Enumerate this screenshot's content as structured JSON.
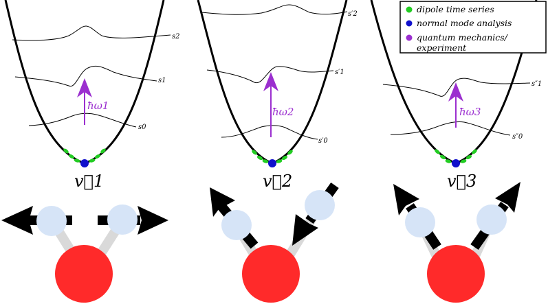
{
  "modes": [
    {
      "vector_label": "v⃗1",
      "transition_label": "ħω1",
      "levels": [
        "s2",
        "s1",
        "s0"
      ]
    },
    {
      "vector_label": "v⃗2",
      "transition_label": "ħω2",
      "levels": [
        "s′2",
        "s′1",
        "s′0"
      ]
    },
    {
      "vector_label": "v⃗3",
      "transition_label": "ħω3",
      "levels": [
        "s″1",
        "s″0"
      ]
    }
  ],
  "legend": {
    "items": [
      {
        "label": "dipole time series",
        "color": "#22cc22"
      },
      {
        "label": "normal mode analysis",
        "color": "#1010cc"
      },
      {
        "label": "quantum mechanics/",
        "label_cont": "experiment",
        "color": "#9b2fcf"
      }
    ]
  },
  "colors": {
    "oxygen": "#ff2a2a",
    "hydrogen": "#d6e4f7",
    "bond": "#d9d9d9",
    "arrow": "#000000",
    "transition": "#9b2fcf"
  }
}
